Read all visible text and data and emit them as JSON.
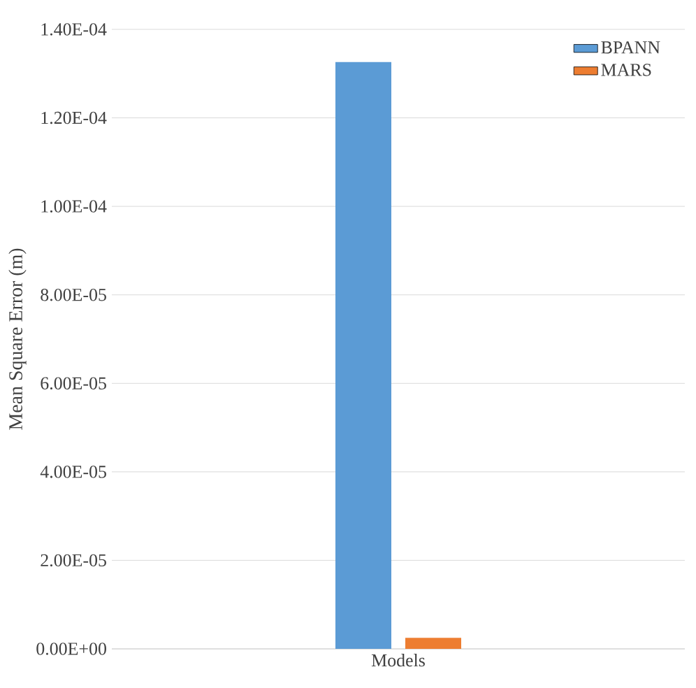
{
  "chart_data": {
    "type": "bar",
    "ylabel": "Mean Square Error (m)",
    "categories": [
      "Models"
    ],
    "series": [
      {
        "name": "BPANN",
        "color": "#5b9bd5",
        "values": [
          0.0001326
        ]
      },
      {
        "name": "MARS",
        "color": "#ed7d31",
        "values": [
          2.5e-06
        ]
      }
    ],
    "ylim": [
      0,
      0.00014
    ],
    "yticks": [
      {
        "value": 0,
        "label": "0.00E+00"
      },
      {
        "value": 2e-05,
        "label": "2.00E-05"
      },
      {
        "value": 4e-05,
        "label": "4.00E-05"
      },
      {
        "value": 6e-05,
        "label": "6.00E-05"
      },
      {
        "value": 8e-05,
        "label": "8.00E-05"
      },
      {
        "value": 0.0001,
        "label": "1.00E-04"
      },
      {
        "value": 0.00012,
        "label": "1.20E-04"
      },
      {
        "value": 0.00014,
        "label": "1.40E-04"
      }
    ],
    "grid": "y",
    "legend": "top right"
  }
}
